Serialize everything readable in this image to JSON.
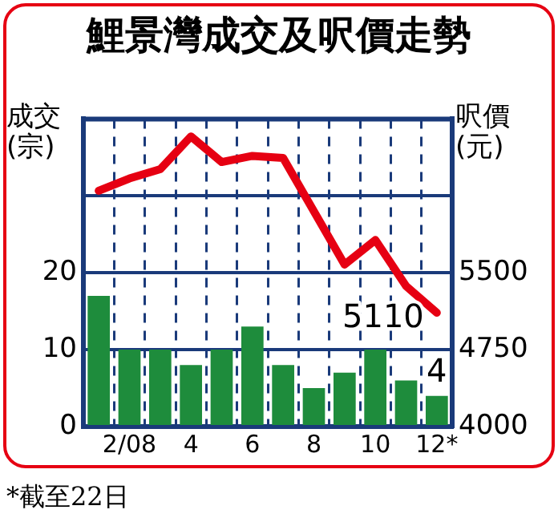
{
  "chart_data": {
    "type": "bar",
    "title": "鯉景灣成交及呎價走勢",
    "ylabel": "成交(宗)",
    "y2label": "呎價(元)",
    "categories": [
      null,
      "2/08",
      null,
      "4",
      null,
      "6",
      null,
      "8",
      null,
      "10",
      null,
      "12*"
    ],
    "series": [
      {
        "color": "#1e8c3c",
        "values": [
          17,
          10,
          10,
          8,
          10,
          13,
          8,
          5,
          7,
          10,
          6,
          4
        ],
        "value_labels": [
          null,
          null,
          null,
          null,
          null,
          null,
          null,
          null,
          null,
          null,
          null,
          "4"
        ]
      },
      {
        "type": "line",
        "axis": "y2",
        "color": "#e60012",
        "values": [
          6300,
          6420,
          6510,
          6830,
          6580,
          6640,
          6620,
          6100,
          5580,
          5820,
          5370,
          5110
        ],
        "value_labels": [
          null,
          null,
          null,
          null,
          null,
          null,
          null,
          null,
          null,
          null,
          null,
          "5110"
        ]
      }
    ],
    "ylim": [
      0,
      40
    ],
    "yticks": [
      0,
      10,
      20,
      {
        "value": 30,
        "label": null
      }
    ],
    "y2lim": [
      4000,
      7000
    ],
    "y2ticks": [
      4000,
      4750,
      5500
    ],
    "grid": true,
    "legend": false,
    "marker": "none",
    "line_style": "solid",
    "annotations": [
      "*截至22日"
    ]
  }
}
